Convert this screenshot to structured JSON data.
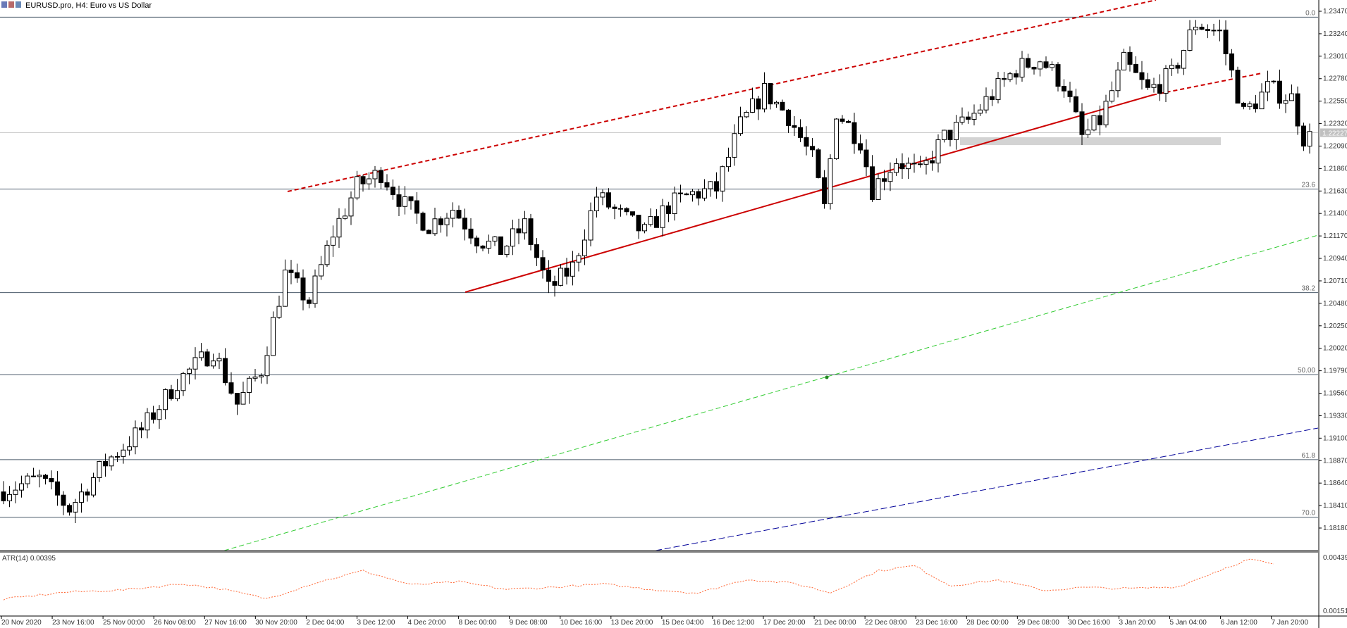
{
  "header": {
    "symbol_title": "EURUSD.pro, H4:  Euro vs US Dollar"
  },
  "indicator": {
    "label": "ATR(14) 0.00395",
    "color": "#ff6633",
    "axis_labels": [
      "0.00439",
      "0.00151"
    ]
  },
  "current_price_label": "1.22227",
  "colors": {
    "channel": "#cc0000",
    "green_line": "#33cc33",
    "blue_line": "#000099",
    "fib_line": "#4a5a6a",
    "candle": "#000000",
    "support_zone": "#d3d3d3"
  },
  "chart_data": {
    "type": "candlestick",
    "title": "EURUSD.pro, H4:  Euro vs US Dollar",
    "price_axis_ticks": [
      "1.23470",
      "1.23240",
      "1.23010",
      "1.22780",
      "1.22550",
      "1.22320",
      "1.22090",
      "1.21860",
      "1.21630",
      "1.21400",
      "1.21170",
      "1.20940",
      "1.20710",
      "1.20480",
      "1.20250",
      "1.20020",
      "1.19790",
      "1.19560",
      "1.19330",
      "1.19100",
      "1.18870",
      "1.18640",
      "1.18410",
      "1.18180"
    ],
    "time_axis_ticks": [
      "20 Nov 2020",
      "23 Nov 16:00",
      "25 Nov 00:00",
      "26 Nov 08:00",
      "27 Nov 16:00",
      "30 Nov 20:00",
      "2 Dec 04:00",
      "3 Dec 12:00",
      "4 Dec 20:00",
      "8 Dec 00:00",
      "9 Dec 08:00",
      "10 Dec 16:00",
      "13 Dec 20:00",
      "15 Dec 04:00",
      "16 Dec 12:00",
      "17 Dec 20:00",
      "21 Dec 00:00",
      "22 Dec 08:00",
      "23 Dec 16:00",
      "28 Dec 00:00",
      "29 Dec 08:00",
      "30 Dec 16:00",
      "3 Jan 20:00",
      "5 Jan 04:00",
      "6 Jan 12:00",
      "7 Jan 20:00"
    ],
    "fib_levels": [
      {
        "label": "0.0",
        "price": 1.2341
      },
      {
        "label": "23.6",
        "price": 1.2165
      },
      {
        "label": "38.2",
        "price": 1.2059
      },
      {
        "label": "50.00",
        "price": 1.1975
      },
      {
        "label": "61.8",
        "price": 1.1888
      },
      {
        "label": "70.0",
        "price": 1.1829
      }
    ],
    "support_zone": {
      "low": 1.221,
      "high": 1.2218
    },
    "price_path": [
      [
        0,
        1.1855
      ],
      [
        7,
        1.1868
      ],
      [
        12,
        1.1838
      ],
      [
        18,
        1.1885
      ],
      [
        24,
        1.1918
      ],
      [
        30,
        1.1968
      ],
      [
        36,
        1.2
      ],
      [
        40,
        1.1945
      ],
      [
        44,
        1.198
      ],
      [
        48,
        1.2078
      ],
      [
        52,
        1.205
      ],
      [
        56,
        1.212
      ],
      [
        60,
        1.2168
      ],
      [
        64,
        1.2182
      ],
      [
        68,
        1.2148
      ],
      [
        72,
        1.2128
      ],
      [
        76,
        1.2145
      ],
      [
        80,
        1.2115
      ],
      [
        84,
        1.2102
      ],
      [
        88,
        1.2128
      ],
      [
        92,
        1.2062
      ],
      [
        96,
        1.2085
      ],
      [
        100,
        1.2158
      ],
      [
        104,
        1.2138
      ],
      [
        108,
        1.212
      ],
      [
        112,
        1.2148
      ],
      [
        116,
        1.216
      ],
      [
        120,
        1.2165
      ],
      [
        124,
        1.223
      ],
      [
        128,
        1.2265
      ],
      [
        132,
        1.224
      ],
      [
        136,
        1.2195
      ],
      [
        138,
        1.2145
      ],
      [
        140,
        1.2245
      ],
      [
        144,
        1.2215
      ],
      [
        146,
        1.2165
      ],
      [
        150,
        1.2195
      ],
      [
        154,
        1.218
      ],
      [
        158,
        1.2218
      ],
      [
        162,
        1.2235
      ],
      [
        166,
        1.2262
      ],
      [
        170,
        1.2288
      ],
      [
        174,
        1.2298
      ],
      [
        178,
        1.2272
      ],
      [
        181,
        1.2218
      ],
      [
        184,
        1.2235
      ],
      [
        188,
        1.2295
      ],
      [
        192,
        1.2265
      ],
      [
        196,
        1.2282
      ],
      [
        200,
        1.2335
      ],
      [
        204,
        1.2325
      ],
      [
        208,
        1.2242
      ],
      [
        212,
        1.2268
      ],
      [
        216,
        1.2258
      ],
      [
        218,
        1.2218
      ]
    ],
    "atr_path": [
      [
        0,
        0.00215
      ],
      [
        10,
        0.00252
      ],
      [
        20,
        0.00265
      ],
      [
        30,
        0.00298
      ],
      [
        36,
        0.00272
      ],
      [
        44,
        0.00218
      ],
      [
        52,
        0.00303
      ],
      [
        60,
        0.00368
      ],
      [
        68,
        0.00292
      ],
      [
        76,
        0.00308
      ],
      [
        84,
        0.00268
      ],
      [
        92,
        0.0028
      ],
      [
        100,
        0.00296
      ],
      [
        108,
        0.00268
      ],
      [
        116,
        0.00248
      ],
      [
        124,
        0.00322
      ],
      [
        132,
        0.003
      ],
      [
        138,
        0.0025
      ],
      [
        146,
        0.00368
      ],
      [
        152,
        0.00395
      ],
      [
        158,
        0.00288
      ],
      [
        166,
        0.00318
      ],
      [
        174,
        0.00262
      ],
      [
        180,
        0.00278
      ],
      [
        188,
        0.00272
      ],
      [
        196,
        0.00282
      ],
      [
        204,
        0.00384
      ],
      [
        208,
        0.0043
      ],
      [
        212,
        0.00402
      ]
    ]
  }
}
